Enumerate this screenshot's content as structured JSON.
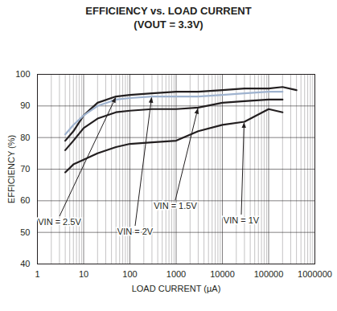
{
  "chart_data": {
    "type": "line",
    "title": "EFFICIENCY vs. LOAD CURRENT",
    "subtitle": "(VOUT = 3.3V)",
    "x_label": "LOAD CURRENT (µA)",
    "y_label": "EFFICIENCY (%)",
    "log": "x",
    "grid": true,
    "xlim": [
      1,
      1000000
    ],
    "xticks": [
      1,
      10,
      100,
      1000,
      10000,
      100000,
      1000000
    ],
    "ylim": [
      40,
      100
    ],
    "yticks": [
      40,
      50,
      60,
      70,
      80,
      90,
      100
    ],
    "x": [
      4,
      6,
      10,
      20,
      50,
      100,
      300,
      1000,
      3000,
      10000,
      30000,
      100000,
      200000,
      400000
    ],
    "series": [
      {
        "name": "VIN = 2.5V",
        "color": "#231f20",
        "values": [
          79,
          82,
          87,
          91,
          93,
          93.5,
          94,
          94.5,
          94.5,
          95,
          95.5,
          95.5,
          96,
          95
        ]
      },
      {
        "name": "VIN = 2V",
        "color": "#9fb3cf",
        "values": [
          81,
          84,
          87,
          90,
          92,
          92.5,
          93,
          93,
          93,
          93.5,
          94,
          94.5,
          94.5,
          null
        ]
      },
      {
        "name": "VIN = 1.5V",
        "color": "#231f20",
        "values": [
          76,
          79,
          83,
          86,
          88,
          88.5,
          89,
          89,
          89.5,
          91,
          91.5,
          92,
          92,
          null
        ]
      },
      {
        "name": "VIN = 1V",
        "color": "#231f20",
        "values": [
          69,
          71.5,
          73,
          75,
          77,
          78,
          78.5,
          79,
          82,
          84,
          85,
          89,
          88,
          null
        ]
      }
    ]
  }
}
